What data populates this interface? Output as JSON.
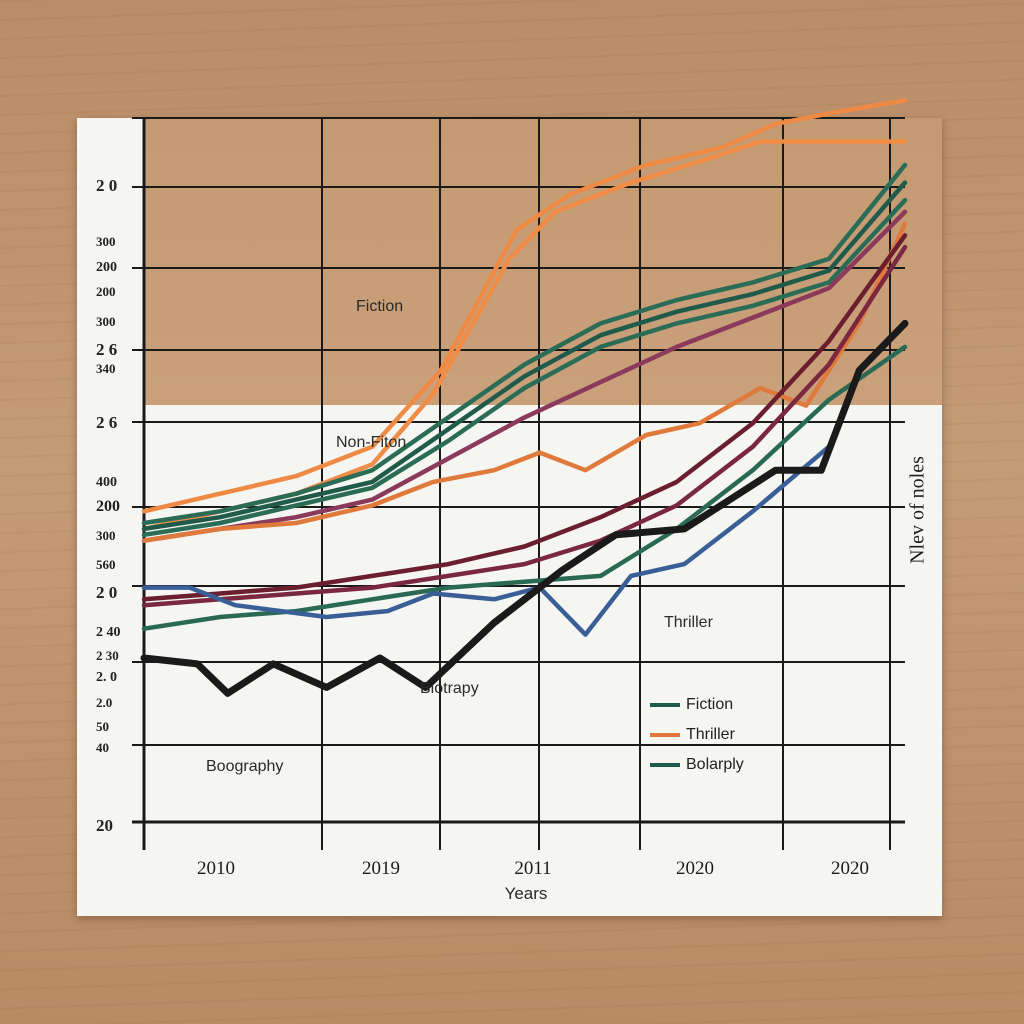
{
  "chart_data": {
    "type": "line",
    "xlabel": "Years",
    "ylabel": "Nlev of noles",
    "x_tick_labels": [
      "2010",
      "2019",
      "2011",
      "2020",
      "2020"
    ],
    "y_tick_labels": [
      "2 0",
      "300",
      "200",
      "200",
      "300",
      "2 6",
      "340",
      "2 6",
      "400",
      "200",
      "300",
      "560",
      "2 0",
      "2 40",
      "2 30",
      "2. 0",
      "2.0",
      "50",
      "40",
      "20"
    ],
    "x_range": [
      0,
      10
    ],
    "y_range": [
      0,
      100
    ],
    "grid": true,
    "annotations": [
      "Fiction",
      "Non-Fiton",
      "Thriller",
      "Biotrapy",
      "Boography"
    ],
    "legend": {
      "position": "bottom-right",
      "entries": [
        {
          "label": "Fiction",
          "color": "#1f5a4a"
        },
        {
          "label": "Thriller",
          "color": "#e07a3c"
        },
        {
          "label": "Bolarply",
          "color": "#1f5a4a"
        }
      ]
    },
    "series": [
      {
        "color": "#ef8a45",
        "x": [
          0,
          1,
          2,
          3,
          3.9,
          4.9,
          5.6,
          6.6,
          7.6,
          8.3,
          9.1,
          10
        ],
        "y": [
          33,
          36,
          39,
          44,
          57,
          81,
          87,
          92,
          95,
          99,
          101,
          103
        ]
      },
      {
        "color": "#f08c46",
        "x": [
          0,
          1,
          2,
          3,
          3.8,
          4.8,
          5.4,
          6.4,
          7.4,
          8.1,
          10
        ],
        "y": [
          30,
          33,
          36,
          41,
          53,
          76,
          84,
          89,
          93,
          96,
          96
        ]
      },
      {
        "color": "#2b6c57",
        "x": [
          0,
          1,
          2,
          3,
          4,
          5,
          6,
          7,
          8,
          9,
          10
        ],
        "y": [
          31,
          33,
          36,
          40,
          49,
          58,
          65,
          69,
          72,
          76,
          92
        ]
      },
      {
        "color": "#1f5a4a",
        "x": [
          0,
          1,
          2,
          3,
          4,
          5,
          6,
          7,
          8,
          9,
          10
        ],
        "y": [
          30,
          32,
          35,
          38,
          47,
          56,
          63,
          67,
          70,
          74,
          89
        ]
      },
      {
        "color": "#2b6c57",
        "x": [
          0,
          1,
          2,
          3,
          4,
          5,
          6,
          7,
          8,
          9,
          10
        ],
        "y": [
          29,
          31,
          34,
          37,
          45,
          54,
          61,
          65,
          68,
          72,
          86
        ]
      },
      {
        "color": "#8b3a5c",
        "x": [
          0,
          1,
          2,
          3,
          4,
          5,
          6,
          7,
          8,
          9,
          10
        ],
        "y": [
          28,
          30,
          32,
          35,
          42,
          49,
          55,
          61,
          66,
          71,
          84
        ]
      },
      {
        "color": "#e07a3c",
        "x": [
          0,
          1,
          2,
          3,
          3.8,
          4.6,
          5.2,
          5.8,
          6.6,
          7.3,
          8.1,
          8.7,
          9.4,
          10
        ],
        "y": [
          28,
          30,
          31,
          34,
          38,
          40,
          43,
          40,
          46,
          48,
          54,
          51,
          65,
          82
        ]
      },
      {
        "color": "#6b1f2e",
        "x": [
          0,
          1,
          2,
          3,
          4,
          5,
          6,
          7,
          8,
          9,
          10
        ],
        "y": [
          18,
          19,
          20,
          22,
          24,
          27,
          32,
          38,
          48,
          62,
          80
        ]
      },
      {
        "color": "#7a2840",
        "x": [
          0,
          1,
          2,
          3,
          4,
          5,
          6,
          7,
          8,
          9,
          10
        ],
        "y": [
          17,
          18,
          19,
          20,
          22,
          24,
          28,
          34,
          44,
          58,
          78
        ]
      },
      {
        "color": "#2a6a55",
        "x": [
          0,
          1,
          2,
          3,
          4,
          5,
          6,
          7,
          8,
          9,
          10
        ],
        "y": [
          13,
          15,
          16,
          18,
          20,
          21,
          22,
          30,
          40,
          52,
          61
        ]
      },
      {
        "color": "#3a5f96",
        "x": [
          0,
          0.6,
          1.2,
          2.4,
          3.2,
          3.8,
          4.6,
          5.2,
          5.8,
          6.4,
          7.1,
          8,
          9
        ],
        "y": [
          20,
          20,
          17,
          15,
          16,
          19,
          18,
          20,
          12,
          22,
          24,
          33,
          44
        ]
      },
      {
        "color": "#1a1a1a",
        "x": [
          0,
          0.7,
          1.1,
          1.7,
          2.4,
          3.1,
          3.7,
          4.6,
          5.5,
          6.2,
          7.1,
          7.7,
          8.3,
          8.9,
          9.4,
          10
        ],
        "y": [
          8,
          7,
          2,
          7,
          3,
          8,
          3,
          14,
          23,
          29,
          30,
          35,
          40,
          40,
          57,
          65
        ]
      }
    ]
  }
}
